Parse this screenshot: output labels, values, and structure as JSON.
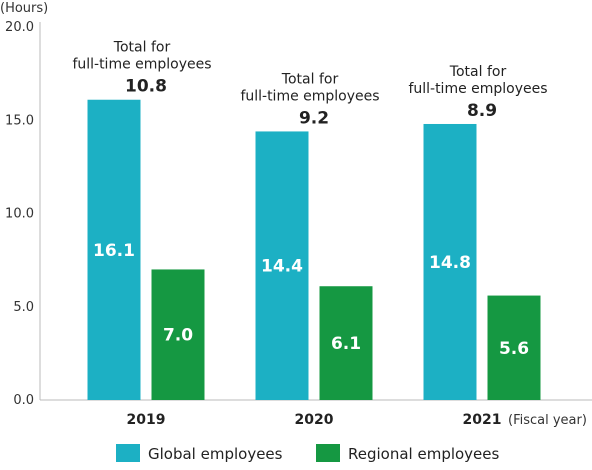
{
  "chart_data": {
    "type": "bar",
    "y_unit": "(Hours)",
    "x_unit": "(Fiscal year)",
    "ylim": [
      0,
      20
    ],
    "y_ticks": [
      "0.0",
      "5.0",
      "10.0",
      "15.0",
      "20.0"
    ],
    "grid": false,
    "categories": [
      "2019",
      "2020",
      "2021"
    ],
    "series": [
      {
        "name": "Global employees",
        "color": "#1cb0c4",
        "values": [
          16.1,
          14.4,
          14.8
        ],
        "labels": [
          "16.1",
          "14.4",
          "14.8"
        ]
      },
      {
        "name": "Regional employees",
        "color": "#159842",
        "values": [
          7.0,
          6.1,
          5.6
        ],
        "labels": [
          "7.0",
          "6.1",
          "5.6"
        ]
      }
    ],
    "totals": [
      {
        "label_line1": "Total for",
        "label_line2": "full-time employees",
        "value": "10.8"
      },
      {
        "label_line1": "Total for",
        "label_line2": "full-time employees",
        "value": "9.2"
      },
      {
        "label_line1": "Total for",
        "label_line2": "full-time employees",
        "value": "8.9"
      }
    ],
    "legend_position": "bottom"
  }
}
